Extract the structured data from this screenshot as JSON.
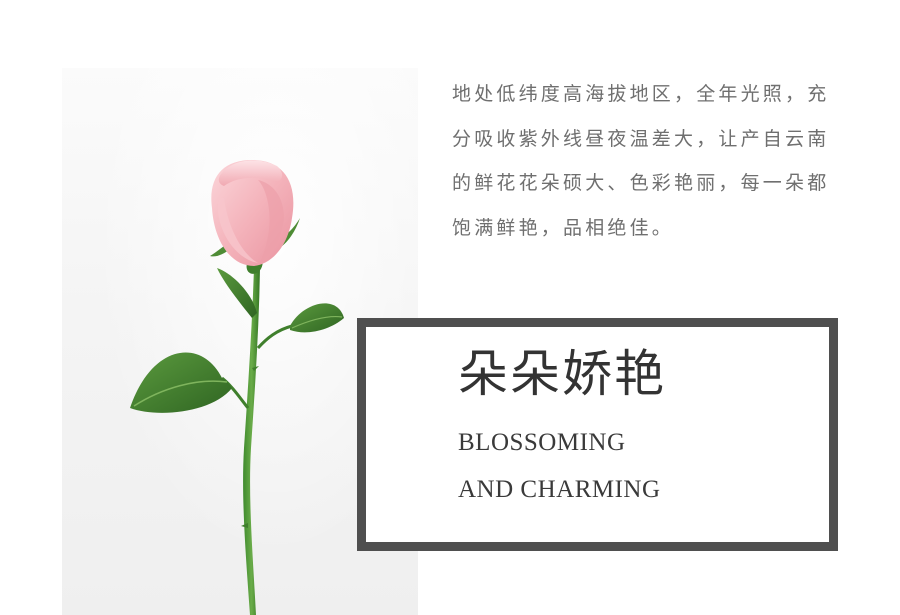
{
  "intro_text": "地处低纬度高海拔地区，全年光照，充分吸收紫外线昼夜温差大，让产自云南的鲜花花朵硕大、色彩艳丽，每一朵都饱满鲜艳，品相绝佳。",
  "feature": {
    "title": "朵朵娇艳",
    "subtitle_line1": "BLOSSOMING",
    "subtitle_line2": "AND CHARMING"
  },
  "colors": {
    "frame_border": "#4f4f4f",
    "body_text": "#6f6f6f",
    "title_text": "#333333",
    "petal": "#f3b8bf",
    "leaf": "#3d7a2c"
  },
  "image": {
    "subject": "rose-photo"
  }
}
